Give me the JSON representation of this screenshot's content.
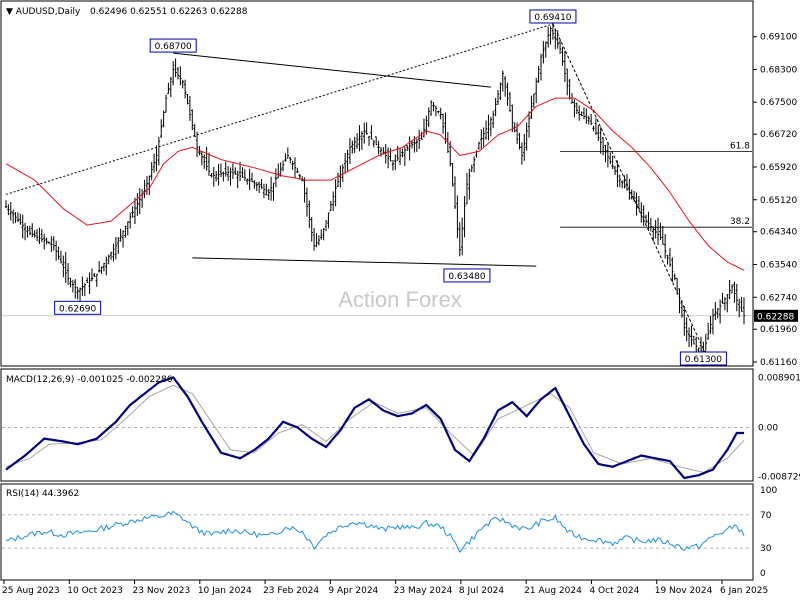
{
  "header": {
    "symbol_label": "AUDUSD,Daily",
    "ohlc_label": "0.62496 0.62551 0.62263 0.62288"
  },
  "watermark": "Action Forex",
  "colors": {
    "price": "#000000",
    "ma": "#e8121f",
    "macd": "#000080",
    "signal": "#a6a6a6",
    "rsi": "#1e90d8",
    "box_border": "#0000aa"
  },
  "chart_data": [
    {
      "type": "candlestick",
      "title": "AUDUSD,Daily",
      "x": [
        "25 Aug 2023",
        "10 Oct 2023",
        "23 Nov 2023",
        "10 Jan 2024",
        "23 Feb 2024",
        "9 Apr 2024",
        "23 May 2024",
        "8 Jul 2024",
        "21 Aug 2024",
        "4 Oct 2024",
        "19 Nov 2024",
        "6 Jan 2025"
      ],
      "ylim": [
        0.6116,
        0.698
      ],
      "yticks": [
        "0.69100",
        "0.68300",
        "0.67500",
        "0.66720",
        "0.65920",
        "0.65120",
        "0.64340",
        "0.63540",
        "0.62740",
        "0.61960",
        "0.61160"
      ],
      "current_price": "0.62288",
      "close_path": [
        [
          0,
          0.6495
        ],
        [
          10,
          0.643
        ],
        [
          20,
          0.64
        ],
        [
          26,
          0.632
        ],
        [
          30,
          0.629
        ],
        [
          38,
          0.633
        ],
        [
          46,
          0.64
        ],
        [
          52,
          0.647
        ],
        [
          58,
          0.6535
        ],
        [
          63,
          0.662
        ],
        [
          67,
          0.676
        ],
        [
          70,
          0.683
        ],
        [
          74,
          0.68
        ],
        [
          80,
          0.664
        ],
        [
          86,
          0.657
        ],
        [
          94,
          0.658
        ],
        [
          102,
          0.656
        ],
        [
          110,
          0.653
        ],
        [
          118,
          0.662
        ],
        [
          124,
          0.656
        ],
        [
          129,
          0.64
        ],
        [
          132,
          0.642
        ],
        [
          138,
          0.654
        ],
        [
          144,
          0.664
        ],
        [
          150,
          0.668
        ],
        [
          156,
          0.664
        ],
        [
          162,
          0.66
        ],
        [
          168,
          0.664
        ],
        [
          174,
          0.666
        ],
        [
          178,
          0.675
        ],
        [
          182,
          0.672
        ],
        [
          186,
          0.66
        ],
        [
          190,
          0.639
        ],
        [
          193,
          0.655
        ],
        [
          198,
          0.665
        ],
        [
          204,
          0.672
        ],
        [
          208,
          0.682
        ],
        [
          212,
          0.67
        ],
        [
          216,
          0.662
        ],
        [
          220,
          0.674
        ],
        [
          224,
          0.686
        ],
        [
          228,
          0.693
        ],
        [
          232,
          0.688
        ],
        [
          236,
          0.676
        ],
        [
          240,
          0.672
        ],
        [
          244,
          0.671
        ],
        [
          250,
          0.664
        ],
        [
          256,
          0.657
        ],
        [
          262,
          0.652
        ],
        [
          268,
          0.646
        ],
        [
          274,
          0.642
        ],
        [
          280,
          0.632
        ],
        [
          284,
          0.62
        ],
        [
          288,
          0.616
        ],
        [
          292,
          0.614
        ],
        [
          296,
          0.623
        ],
        [
          300,
          0.626
        ],
        [
          304,
          0.63
        ],
        [
          307,
          0.625
        ],
        [
          309,
          0.6229
        ]
      ],
      "ma_path": [
        [
          0,
          0.66
        ],
        [
          12,
          0.656
        ],
        [
          24,
          0.649
        ],
        [
          34,
          0.645
        ],
        [
          44,
          0.646
        ],
        [
          52,
          0.65
        ],
        [
          60,
          0.654
        ],
        [
          66,
          0.66
        ],
        [
          72,
          0.663
        ],
        [
          78,
          0.664
        ],
        [
          90,
          0.661
        ],
        [
          104,
          0.659
        ],
        [
          116,
          0.657
        ],
        [
          126,
          0.656
        ],
        [
          136,
          0.656
        ],
        [
          146,
          0.659
        ],
        [
          156,
          0.662
        ],
        [
          166,
          0.664
        ],
        [
          176,
          0.668
        ],
        [
          182,
          0.667
        ],
        [
          190,
          0.662
        ],
        [
          198,
          0.663
        ],
        [
          206,
          0.667
        ],
        [
          214,
          0.669
        ],
        [
          222,
          0.674
        ],
        [
          230,
          0.676
        ],
        [
          238,
          0.676
        ],
        [
          246,
          0.673
        ],
        [
          254,
          0.668
        ],
        [
          262,
          0.664
        ],
        [
          270,
          0.659
        ],
        [
          278,
          0.653
        ],
        [
          286,
          0.646
        ],
        [
          294,
          0.64
        ],
        [
          302,
          0.636
        ],
        [
          309,
          0.634
        ]
      ],
      "lines": [
        {
          "name": "upper-trendline",
          "kind": "solid",
          "points": [
            [
              70,
              0.687
            ],
            [
              203,
              0.6787
            ]
          ]
        },
        {
          "name": "lower-trendline",
          "kind": "solid",
          "points": [
            [
              78,
              0.637
            ],
            [
              222,
              0.635
            ]
          ]
        },
        {
          "name": "long-trendline",
          "kind": "dotted",
          "points": [
            [
              0,
              0.6525
            ],
            [
              229,
              0.6941
            ]
          ]
        },
        {
          "name": "fall-trendline",
          "kind": "dashed",
          "points": [
            [
              229,
              0.6941
            ],
            [
              293,
              0.6135
            ]
          ]
        }
      ],
      "fib_levels": [
        {
          "label": "61.8",
          "value": 0.663
        },
        {
          "label": "38.2",
          "value": 0.6445
        }
      ],
      "fib_start_index": 232,
      "annotations": [
        {
          "label": "0.68700",
          "index": 70,
          "value": 0.687
        },
        {
          "label": "0.69410",
          "index": 229,
          "value": 0.6941
        },
        {
          "label": "0.62690",
          "index": 30,
          "value": 0.6269
        },
        {
          "label": "0.63480",
          "index": 193,
          "value": 0.6348
        },
        {
          "label": "0.61300",
          "index": 292,
          "value": 0.613
        }
      ]
    },
    {
      "type": "line",
      "title": "MACD(12,26,9) -0.001025 -0.002286",
      "ylim": [
        -0.009,
        0.0095
      ],
      "yticks": [
        "0.008901",
        "0.00",
        "-0.008729"
      ],
      "macd_path": [
        [
          0,
          -0.0075
        ],
        [
          8,
          -0.005
        ],
        [
          16,
          -0.002
        ],
        [
          24,
          -0.0025
        ],
        [
          30,
          -0.003
        ],
        [
          38,
          -0.002
        ],
        [
          46,
          0.001
        ],
        [
          52,
          0.004
        ],
        [
          58,
          0.006
        ],
        [
          64,
          0.008
        ],
        [
          70,
          0.0089
        ],
        [
          76,
          0.0055
        ],
        [
          82,
          0.001
        ],
        [
          90,
          -0.0045
        ],
        [
          98,
          -0.0055
        ],
        [
          104,
          -0.004
        ],
        [
          110,
          -0.002
        ],
        [
          116,
          0.001
        ],
        [
          122,
          0.0
        ],
        [
          128,
          -0.002
        ],
        [
          134,
          -0.0035
        ],
        [
          140,
          -0.0005
        ],
        [
          146,
          0.0035
        ],
        [
          152,
          0.005
        ],
        [
          158,
          0.003
        ],
        [
          164,
          0.002
        ],
        [
          170,
          0.0025
        ],
        [
          176,
          0.004
        ],
        [
          182,
          0.0015
        ],
        [
          188,
          -0.004
        ],
        [
          194,
          -0.006
        ],
        [
          200,
          -0.002
        ],
        [
          206,
          0.003
        ],
        [
          212,
          0.0045
        ],
        [
          218,
          0.002
        ],
        [
          224,
          0.005
        ],
        [
          230,
          0.007
        ],
        [
          236,
          0.002
        ],
        [
          242,
          -0.003
        ],
        [
          248,
          -0.0065
        ],
        [
          254,
          -0.007
        ],
        [
          260,
          -0.006
        ],
        [
          266,
          -0.005
        ],
        [
          272,
          -0.0055
        ],
        [
          278,
          -0.006
        ],
        [
          284,
          -0.009
        ],
        [
          290,
          -0.0085
        ],
        [
          296,
          -0.0075
        ],
        [
          302,
          -0.004
        ],
        [
          306,
          -0.001
        ],
        [
          309,
          -0.001
        ]
      ],
      "signal_path": [
        [
          0,
          -0.007
        ],
        [
          10,
          -0.0055
        ],
        [
          18,
          -0.003
        ],
        [
          28,
          -0.0028
        ],
        [
          40,
          -0.0022
        ],
        [
          50,
          0.0015
        ],
        [
          60,
          0.0055
        ],
        [
          70,
          0.0075
        ],
        [
          78,
          0.006
        ],
        [
          86,
          0.001
        ],
        [
          94,
          -0.004
        ],
        [
          104,
          -0.0045
        ],
        [
          114,
          -0.001
        ],
        [
          124,
          0.0005
        ],
        [
          134,
          -0.0025
        ],
        [
          144,
          0.0015
        ],
        [
          154,
          0.0045
        ],
        [
          164,
          0.0025
        ],
        [
          176,
          0.0035
        ],
        [
          186,
          -0.001
        ],
        [
          196,
          -0.005
        ],
        [
          206,
          0.0015
        ],
        [
          216,
          0.0035
        ],
        [
          228,
          0.006
        ],
        [
          236,
          0.0035
        ],
        [
          246,
          -0.0045
        ],
        [
          258,
          -0.0065
        ],
        [
          270,
          -0.0055
        ],
        [
          282,
          -0.007
        ],
        [
          292,
          -0.008
        ],
        [
          302,
          -0.0055
        ],
        [
          309,
          -0.0023
        ]
      ]
    },
    {
      "type": "line",
      "title": "RSI(14) 44.3962",
      "ylim": [
        0,
        100
      ],
      "yticks": [
        "100",
        "70",
        "30",
        "0"
      ],
      "rsi_path": [
        [
          0,
          38
        ],
        [
          8,
          45
        ],
        [
          16,
          50
        ],
        [
          24,
          46
        ],
        [
          30,
          48
        ],
        [
          38,
          52
        ],
        [
          46,
          58
        ],
        [
          52,
          62
        ],
        [
          58,
          66
        ],
        [
          64,
          68
        ],
        [
          70,
          72
        ],
        [
          74,
          66
        ],
        [
          80,
          52
        ],
        [
          86,
          46
        ],
        [
          94,
          52
        ],
        [
          102,
          48
        ],
        [
          110,
          44
        ],
        [
          118,
          56
        ],
        [
          124,
          50
        ],
        [
          129,
          32
        ],
        [
          134,
          46
        ],
        [
          140,
          56
        ],
        [
          146,
          62
        ],
        [
          152,
          58
        ],
        [
          158,
          52
        ],
        [
          164,
          56
        ],
        [
          170,
          54
        ],
        [
          176,
          60
        ],
        [
          182,
          56
        ],
        [
          186,
          44
        ],
        [
          190,
          28
        ],
        [
          194,
          38
        ],
        [
          200,
          56
        ],
        [
          206,
          66
        ],
        [
          212,
          58
        ],
        [
          218,
          52
        ],
        [
          224,
          62
        ],
        [
          230,
          66
        ],
        [
          236,
          48
        ],
        [
          242,
          42
        ],
        [
          248,
          40
        ],
        [
          254,
          36
        ],
        [
          260,
          42
        ],
        [
          266,
          38
        ],
        [
          272,
          40
        ],
        [
          278,
          36
        ],
        [
          284,
          30
        ],
        [
          290,
          32
        ],
        [
          296,
          44
        ],
        [
          302,
          52
        ],
        [
          306,
          58
        ],
        [
          309,
          44
        ]
      ]
    }
  ]
}
